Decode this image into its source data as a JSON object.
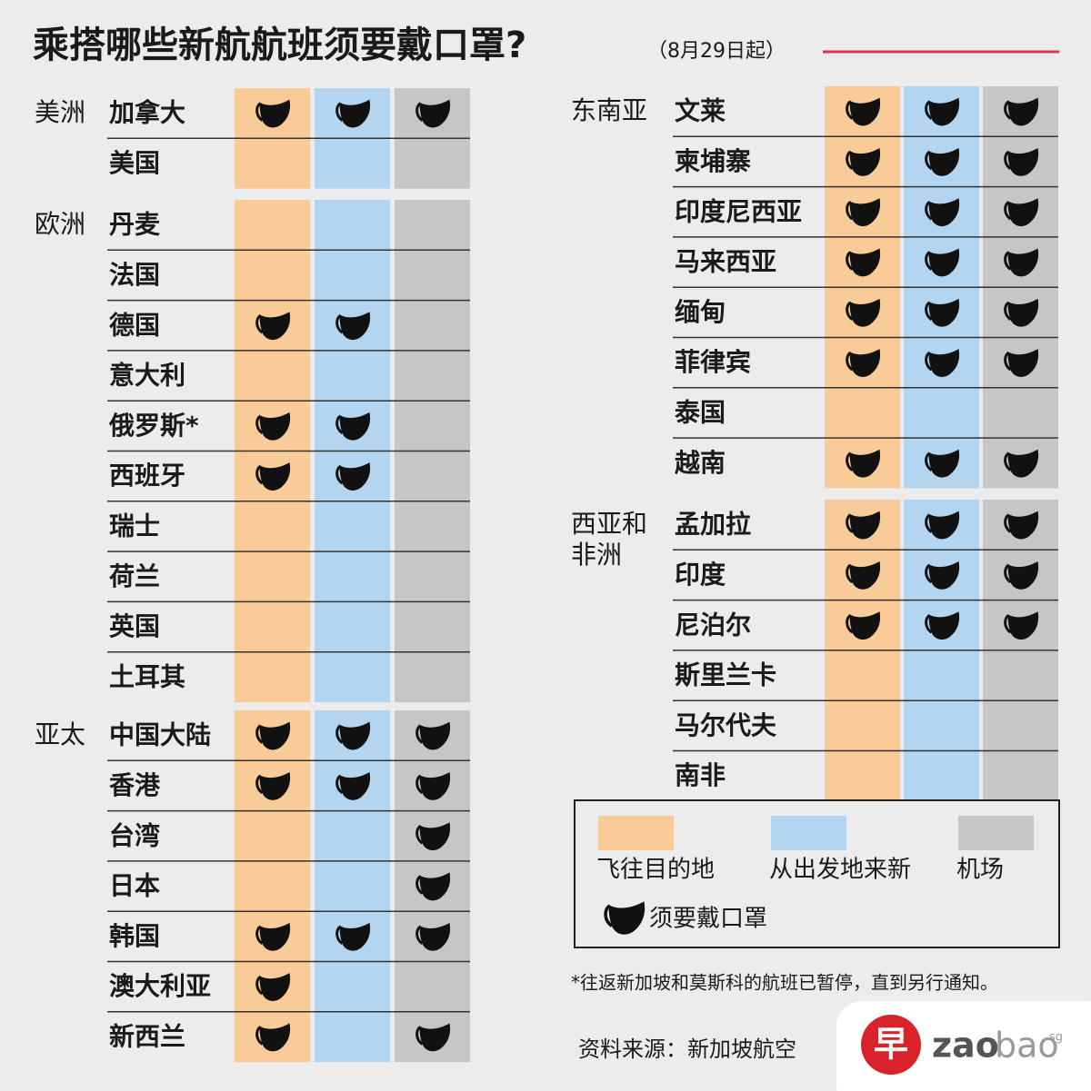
{
  "header": {
    "title": "乘搭哪些新航航班须要戴口罩?",
    "date": "（8月29日起）"
  },
  "legend": {
    "items": [
      {
        "label": "飞往目的地",
        "color": "#f8cb98"
      },
      {
        "label": "从出发地来新",
        "color": "#b3d5f0"
      },
      {
        "label": "机场",
        "color": "#c6c6c6"
      }
    ],
    "mask_label": "须要戴口罩"
  },
  "regions": [
    {
      "name": [
        "美洲"
      ],
      "countries": [
        {
          "name": "加拿大",
          "masks": [
            true,
            true,
            true
          ]
        },
        {
          "name": "美国",
          "masks": [
            false,
            false,
            false
          ]
        }
      ]
    },
    {
      "name": [
        "欧洲"
      ],
      "countries": [
        {
          "name": "丹麦",
          "masks": [
            false,
            false,
            false
          ]
        },
        {
          "name": "法国",
          "masks": [
            false,
            false,
            false
          ]
        },
        {
          "name": "德国",
          "masks": [
            true,
            true,
            false
          ]
        },
        {
          "name": "意大利",
          "masks": [
            false,
            false,
            false
          ]
        },
        {
          "name": "俄罗斯*",
          "masks": [
            true,
            true,
            false
          ]
        },
        {
          "name": "西班牙",
          "masks": [
            true,
            true,
            false
          ]
        },
        {
          "name": "瑞士",
          "masks": [
            false,
            false,
            false
          ]
        },
        {
          "name": "荷兰",
          "masks": [
            false,
            false,
            false
          ]
        },
        {
          "name": "英国",
          "masks": [
            false,
            false,
            false
          ]
        },
        {
          "name": "土耳其",
          "masks": [
            false,
            false,
            false
          ]
        }
      ]
    },
    {
      "name": [
        "亚太"
      ],
      "countries": [
        {
          "name": "中国大陆",
          "masks": [
            true,
            true,
            true
          ]
        },
        {
          "name": "香港",
          "masks": [
            true,
            true,
            true
          ]
        },
        {
          "name": "台湾",
          "masks": [
            false,
            false,
            true
          ]
        },
        {
          "name": "日本",
          "masks": [
            false,
            false,
            true
          ]
        },
        {
          "name": "韩国",
          "masks": [
            true,
            true,
            true
          ]
        },
        {
          "name": "澳大利亚",
          "masks": [
            true,
            false,
            false
          ]
        },
        {
          "name": "新西兰",
          "masks": [
            true,
            false,
            true
          ]
        }
      ]
    },
    {
      "name": [
        "东南亚"
      ],
      "countries": [
        {
          "name": "文莱",
          "masks": [
            true,
            true,
            true
          ]
        },
        {
          "name": "柬埔寨",
          "masks": [
            true,
            true,
            true
          ]
        },
        {
          "name": "印度尼西亚",
          "masks": [
            true,
            true,
            true
          ]
        },
        {
          "name": "马来西亚",
          "masks": [
            true,
            true,
            true
          ]
        },
        {
          "name": "缅甸",
          "masks": [
            true,
            true,
            true
          ]
        },
        {
          "name": "菲律宾",
          "masks": [
            true,
            true,
            true
          ]
        },
        {
          "name": "泰国",
          "masks": [
            false,
            false,
            false
          ]
        },
        {
          "name": "越南",
          "masks": [
            true,
            true,
            true
          ]
        }
      ]
    },
    {
      "name": [
        "西亚和",
        "非洲"
      ],
      "countries": [
        {
          "name": "孟加拉",
          "masks": [
            true,
            true,
            true
          ]
        },
        {
          "name": "印度",
          "masks": [
            true,
            true,
            true
          ]
        },
        {
          "name": "尼泊尔",
          "masks": [
            true,
            true,
            true
          ]
        },
        {
          "name": "斯里兰卡",
          "masks": [
            false,
            false,
            false
          ]
        },
        {
          "name": "马尔代夫",
          "masks": [
            false,
            false,
            false
          ]
        },
        {
          "name": "南非",
          "masks": [
            false,
            false,
            false
          ]
        }
      ]
    }
  ],
  "footnote": "*往返新加坡和莫斯科的航班已暂停，直到另行通知。",
  "source": "资料来源：新加坡航空",
  "logo": {
    "mark": "早",
    "name_bold": "zao",
    "name_light": "bao",
    "suffix": "sg"
  }
}
